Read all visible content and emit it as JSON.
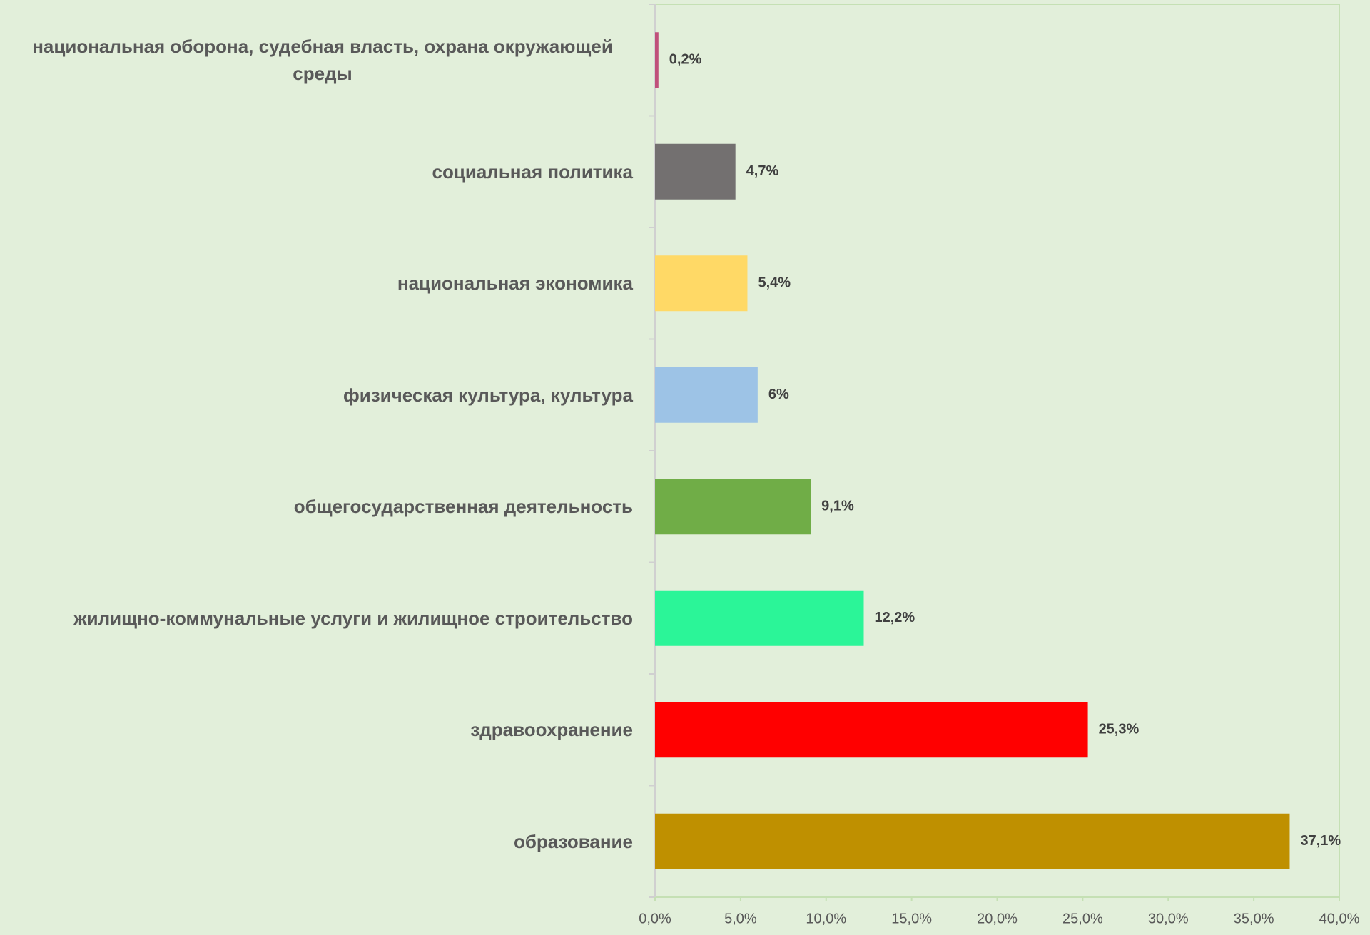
{
  "chart_data": {
    "type": "barh",
    "categories": [
      "национальная оборона, судебная власть, охрана окружающей среды",
      "социальная политика",
      "национальная экономика",
      "физическая культура, культура",
      "общегосударственная деятельность",
      "жилищно-коммунальные услуги и жилищное строительство",
      "здравоохранение",
      "образование"
    ],
    "values": [
      0.2,
      4.7,
      5.4,
      6,
      9.1,
      12.2,
      25.3,
      37.1
    ],
    "value_labels": [
      "0,2%",
      "4,7%",
      "5,4%",
      "6%",
      "9,1%",
      "12,2%",
      "25,3%",
      "37,1%"
    ],
    "colors": [
      "#c0507a",
      "#737070",
      "#ffd966",
      "#9dc3e6",
      "#70ad47",
      "#2bf598",
      "#ff0000",
      "#bf9000"
    ],
    "xlim": [
      0,
      40
    ],
    "xticks": [
      {
        "value": 0,
        "label": "0,0%"
      },
      {
        "value": 5,
        "label": "5,0%"
      },
      {
        "value": 10,
        "label": "10,0%"
      },
      {
        "value": 15,
        "label": "15,0%"
      },
      {
        "value": 20,
        "label": "20,0%"
      },
      {
        "value": 25,
        "label": "25,0%"
      },
      {
        "value": 30,
        "label": "30,0%"
      },
      {
        "value": 35,
        "label": "35,0%"
      },
      {
        "value": 40,
        "label": "40,0%"
      }
    ],
    "grid": false
  }
}
